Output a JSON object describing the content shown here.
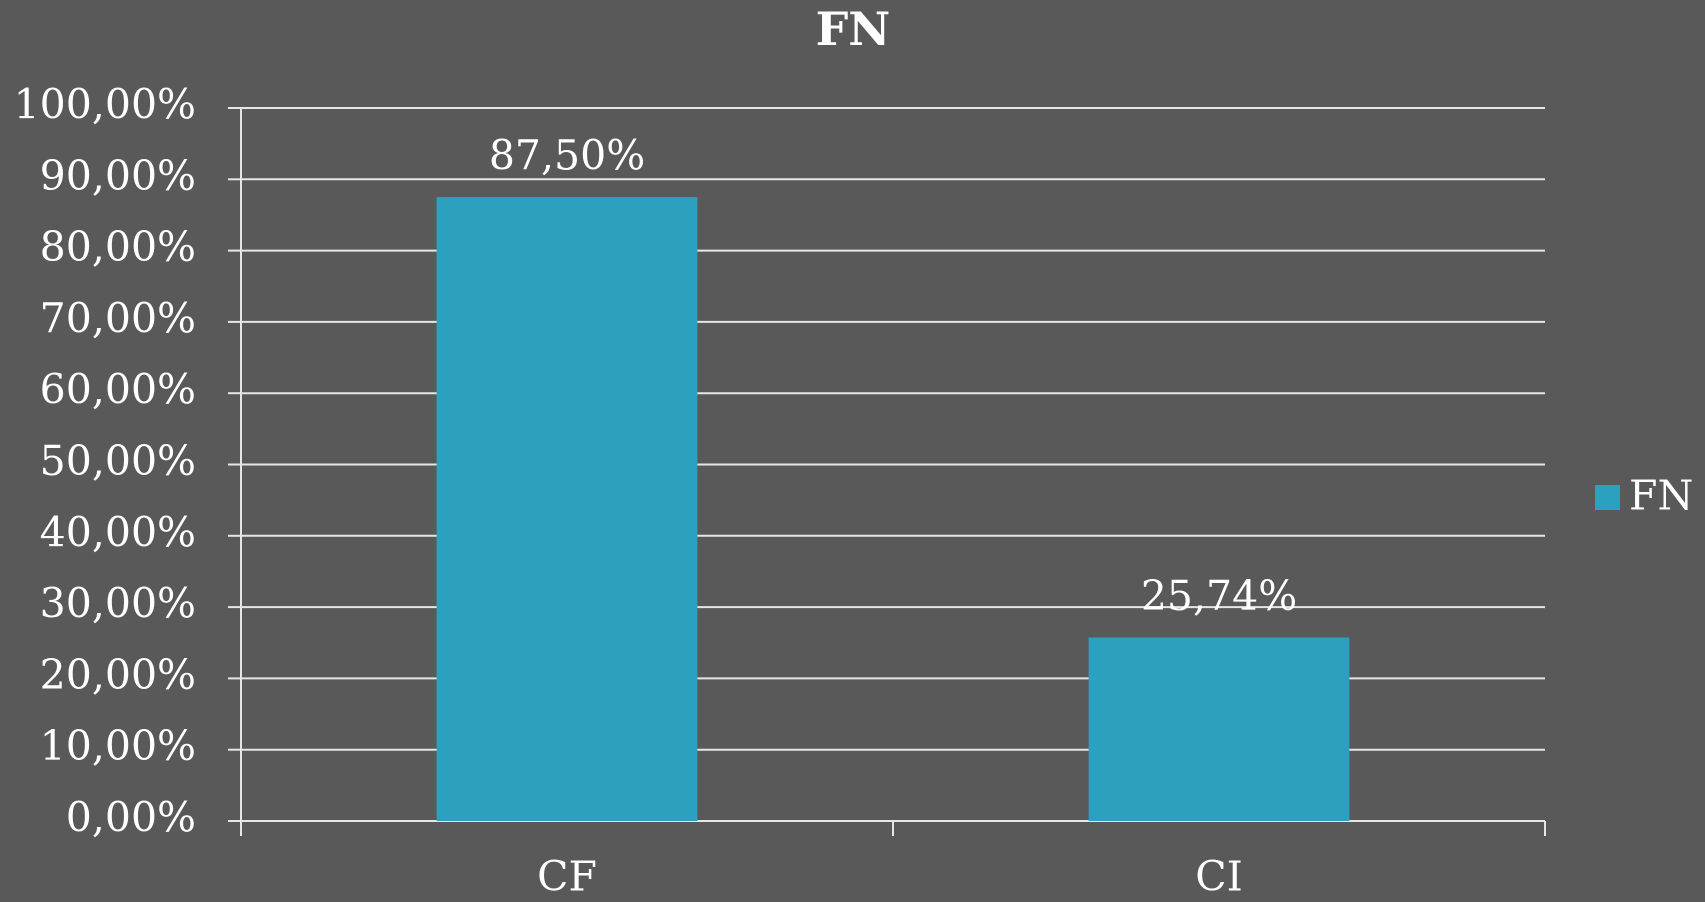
{
  "chart_data": {
    "type": "bar",
    "title": "FN",
    "categories": [
      "CF",
      "CI"
    ],
    "series": [
      {
        "name": "FN",
        "color": "#2ca1bf",
        "values": [
          87.5,
          25.74
        ],
        "value_labels": [
          "87,50%",
          "25,74%"
        ]
      }
    ],
    "ylim": [
      0,
      100
    ],
    "yticks": [
      {
        "value": 0,
        "label": "0,00%"
      },
      {
        "value": 10,
        "label": "10,00%"
      },
      {
        "value": 20,
        "label": "20,00%"
      },
      {
        "value": 30,
        "label": "30,00%"
      },
      {
        "value": 40,
        "label": "40,00%"
      },
      {
        "value": 50,
        "label": "50,00%"
      },
      {
        "value": 60,
        "label": "60,00%"
      },
      {
        "value": 70,
        "label": "70,00%"
      },
      {
        "value": 80,
        "label": "80,00%"
      },
      {
        "value": 90,
        "label": "90,00%"
      },
      {
        "value": 100,
        "label": "100,00%"
      }
    ],
    "grid": true,
    "legend": "right"
  }
}
